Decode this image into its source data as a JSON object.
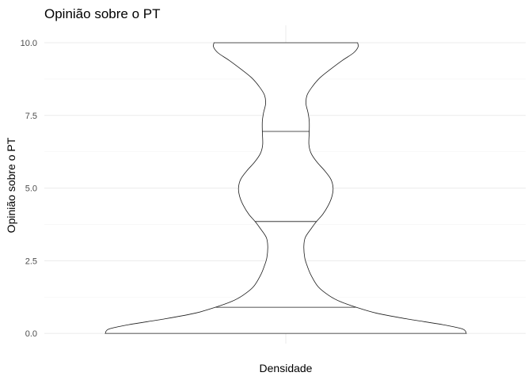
{
  "chart_data": {
    "type": "violin",
    "title": "Opinião sobre o PT",
    "xlabel": "Densidade",
    "ylabel": "Opinião sobre o PT",
    "ylim": [
      -0.35,
      10.6
    ],
    "y_ticks": [
      0.0,
      2.5,
      5.0,
      7.5,
      10.0
    ],
    "y_tick_labels": [
      "0.0",
      "2.5",
      "5.0",
      "7.5",
      "10.0"
    ],
    "grid": true,
    "quantiles": [
      0.9,
      3.85,
      6.95
    ],
    "density_profile": [
      {
        "y": 0.0,
        "w": 1.0
      },
      {
        "y": 0.15,
        "w": 0.98
      },
      {
        "y": 0.3,
        "w": 0.87
      },
      {
        "y": 0.5,
        "w": 0.67
      },
      {
        "y": 0.7,
        "w": 0.5
      },
      {
        "y": 0.9,
        "w": 0.39
      },
      {
        "y": 1.1,
        "w": 0.3
      },
      {
        "y": 1.3,
        "w": 0.24
      },
      {
        "y": 1.6,
        "w": 0.18
      },
      {
        "y": 2.0,
        "w": 0.14
      },
      {
        "y": 2.3,
        "w": 0.12
      },
      {
        "y": 2.6,
        "w": 0.105
      },
      {
        "y": 3.0,
        "w": 0.1
      },
      {
        "y": 3.3,
        "w": 0.108
      },
      {
        "y": 3.6,
        "w": 0.14
      },
      {
        "y": 3.85,
        "w": 0.17
      },
      {
        "y": 4.1,
        "w": 0.205
      },
      {
        "y": 4.4,
        "w": 0.235
      },
      {
        "y": 4.7,
        "w": 0.255
      },
      {
        "y": 5.0,
        "w": 0.262
      },
      {
        "y": 5.3,
        "w": 0.25
      },
      {
        "y": 5.6,
        "w": 0.215
      },
      {
        "y": 5.9,
        "w": 0.172
      },
      {
        "y": 6.2,
        "w": 0.14
      },
      {
        "y": 6.5,
        "w": 0.128
      },
      {
        "y": 6.95,
        "w": 0.13
      },
      {
        "y": 7.3,
        "w": 0.13
      },
      {
        "y": 7.6,
        "w": 0.123
      },
      {
        "y": 7.9,
        "w": 0.112
      },
      {
        "y": 8.2,
        "w": 0.118
      },
      {
        "y": 8.5,
        "w": 0.148
      },
      {
        "y": 8.8,
        "w": 0.19
      },
      {
        "y": 9.1,
        "w": 0.25
      },
      {
        "y": 9.4,
        "w": 0.315
      },
      {
        "y": 9.65,
        "w": 0.375
      },
      {
        "y": 9.85,
        "w": 0.4
      },
      {
        "y": 10.0,
        "w": 0.398
      }
    ]
  }
}
